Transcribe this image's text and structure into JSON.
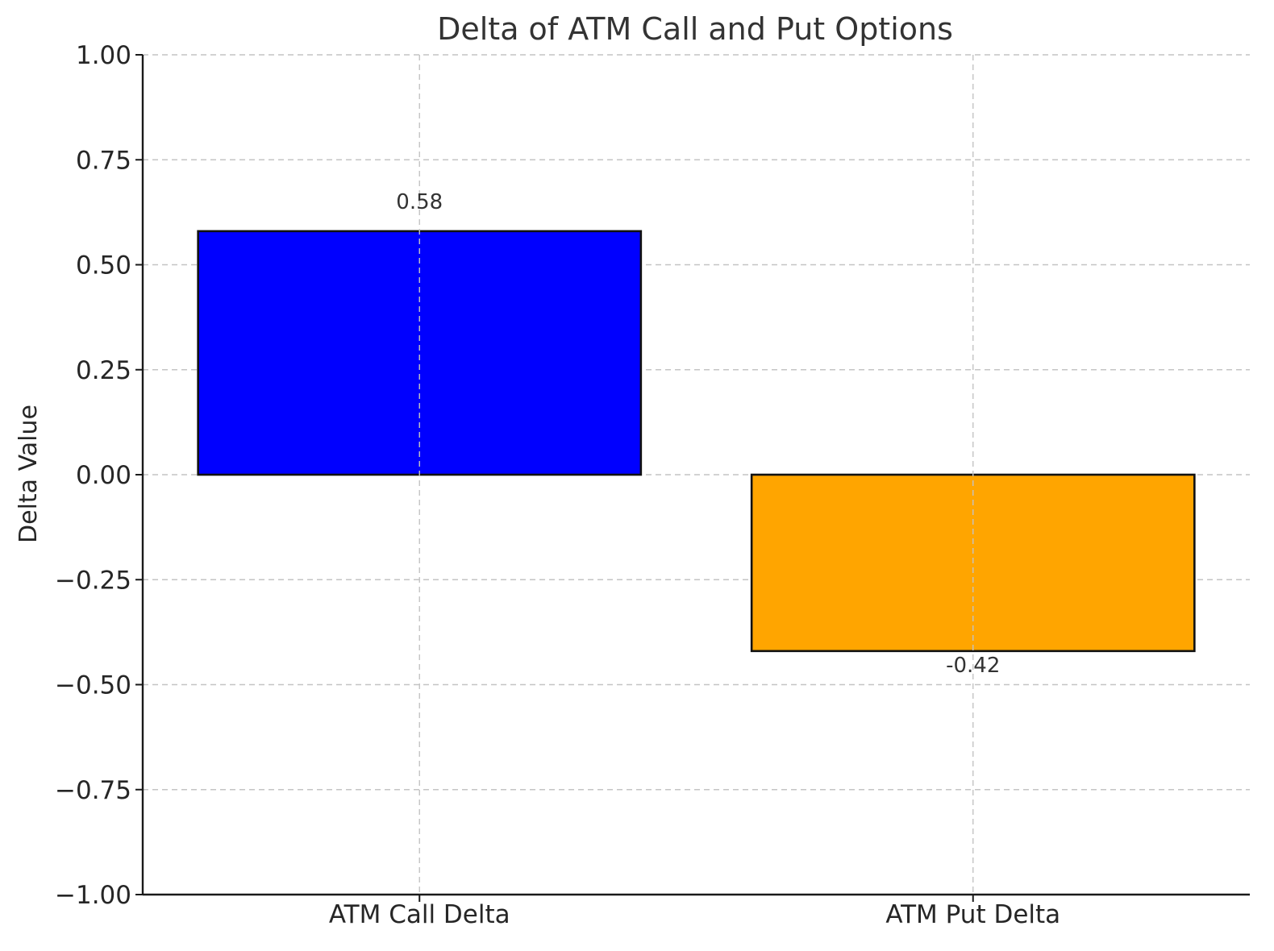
{
  "chart_data": {
    "type": "bar",
    "title": "Delta of ATM Call and Put Options",
    "xlabel": "",
    "ylabel": "Delta Value",
    "categories": [
      "ATM Call Delta",
      "ATM Put Delta"
    ],
    "values": [
      0.58,
      -0.42
    ],
    "data_labels": [
      "0.58",
      "-0.42"
    ],
    "colors": [
      "#0000ff",
      "#ffa500"
    ],
    "ylim": [
      -1.0,
      1.0
    ],
    "yticks": [
      -1.0,
      -0.75,
      -0.5,
      -0.25,
      0.0,
      0.25,
      0.5,
      0.75,
      1.0
    ],
    "ytick_labels": [
      "−1.00",
      "−0.75",
      "−0.50",
      "−0.25",
      "0.00",
      "0.25",
      "0.50",
      "0.75",
      "1.00"
    ],
    "grid": true,
    "legend": "none"
  }
}
